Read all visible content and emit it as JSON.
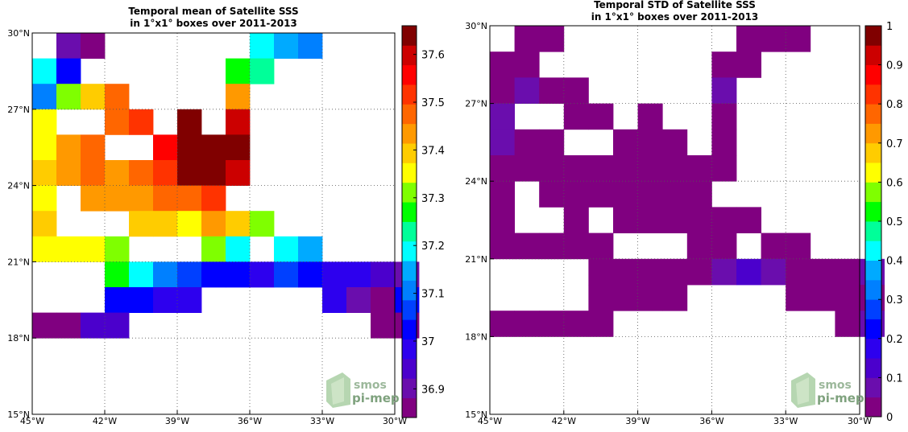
{
  "palette": [
    "#800080",
    "#6a0dad",
    "#4b00cc",
    "#2d00ee",
    "#0000ff",
    "#0040ff",
    "#0080ff",
    "#00aaff",
    "#00ffff",
    "#00ff99",
    "#00ff00",
    "#7fff00",
    "#ffff00",
    "#ffcc00",
    "#ff9900",
    "#ff6600",
    "#ff3300",
    "#ff0000",
    "#cc0000",
    "#800000"
  ],
  "logo": {
    "line1": "smos",
    "line2": "pi-mep"
  },
  "chart_data": [
    {
      "type": "heatmap",
      "title": "Temporal mean of Satellite SSS",
      "subtitle": "in 1°x1° boxes over 2011-2013",
      "lon_range": [
        -45,
        -30
      ],
      "lat_range": [
        15,
        30
      ],
      "x_ticks": [
        "45°W",
        "42°W",
        "39°W",
        "36°W",
        "33°W",
        "30°W"
      ],
      "y_ticks": [
        "15°N",
        "18°N",
        "21°N",
        "24°N",
        "27°N",
        "30°N"
      ],
      "grid": true,
      "colorbar": {
        "min": 36.84,
        "max": 37.66,
        "ticks": [
          "36.9",
          "37",
          "37.1",
          "37.2",
          "37.3",
          "37.4",
          "37.5",
          "37.6"
        ]
      },
      "cells": [
        {
          "lon": -44,
          "lat": 29,
          "v": 36.9
        },
        {
          "lon": -43,
          "lat": 29,
          "v": 36.85
        },
        {
          "lon": -36,
          "lat": 29,
          "v": 37.2
        },
        {
          "lon": -35,
          "lat": 29,
          "v": 37.16
        },
        {
          "lon": -34,
          "lat": 29,
          "v": 37.11
        },
        {
          "lon": -45,
          "lat": 28,
          "v": 37.2
        },
        {
          "lon": -44,
          "lat": 28,
          "v": 37.02
        },
        {
          "lon": -37,
          "lat": 28,
          "v": 37.25
        },
        {
          "lon": -36,
          "lat": 28,
          "v": 37.22
        },
        {
          "lon": -45,
          "lat": 27,
          "v": 37.12
        },
        {
          "lon": -44,
          "lat": 27,
          "v": 37.32
        },
        {
          "lon": -43,
          "lat": 27,
          "v": 37.4
        },
        {
          "lon": -42,
          "lat": 27,
          "v": 37.47
        },
        {
          "lon": -37,
          "lat": 27,
          "v": 37.45
        },
        {
          "lon": -45,
          "lat": 26,
          "v": 37.37
        },
        {
          "lon": -42,
          "lat": 26,
          "v": 37.48
        },
        {
          "lon": -41,
          "lat": 26,
          "v": 37.53
        },
        {
          "lon": -39,
          "lat": 26,
          "v": 37.63
        },
        {
          "lon": -37,
          "lat": 26,
          "v": 37.58
        },
        {
          "lon": -45,
          "lat": 25,
          "v": 37.37
        },
        {
          "lon": -44,
          "lat": 25,
          "v": 37.43
        },
        {
          "lon": -43,
          "lat": 25,
          "v": 37.47
        },
        {
          "lon": -40,
          "lat": 25,
          "v": 37.57
        },
        {
          "lon": -39,
          "lat": 25,
          "v": 37.63
        },
        {
          "lon": -38,
          "lat": 25,
          "v": 37.63
        },
        {
          "lon": -37,
          "lat": 25,
          "v": 37.63
        },
        {
          "lon": -45,
          "lat": 24,
          "v": 37.41
        },
        {
          "lon": -44,
          "lat": 24,
          "v": 37.45
        },
        {
          "lon": -43,
          "lat": 24,
          "v": 37.48
        },
        {
          "lon": -42,
          "lat": 24,
          "v": 37.44
        },
        {
          "lon": -41,
          "lat": 24,
          "v": 37.48
        },
        {
          "lon": -40,
          "lat": 24,
          "v": 37.53
        },
        {
          "lon": -39,
          "lat": 24,
          "v": 37.63
        },
        {
          "lon": -38,
          "lat": 24,
          "v": 37.63
        },
        {
          "lon": -37,
          "lat": 24,
          "v": 37.58
        },
        {
          "lon": -45,
          "lat": 23,
          "v": 37.36
        },
        {
          "lon": -43,
          "lat": 23,
          "v": 37.44
        },
        {
          "lon": -42,
          "lat": 23,
          "v": 37.44
        },
        {
          "lon": -41,
          "lat": 23,
          "v": 37.44
        },
        {
          "lon": -40,
          "lat": 23,
          "v": 37.48
        },
        {
          "lon": -39,
          "lat": 23,
          "v": 37.48
        },
        {
          "lon": -38,
          "lat": 23,
          "v": 37.53
        },
        {
          "lon": -45,
          "lat": 22,
          "v": 37.41
        },
        {
          "lon": -41,
          "lat": 22,
          "v": 37.41
        },
        {
          "lon": -40,
          "lat": 22,
          "v": 37.41
        },
        {
          "lon": -39,
          "lat": 22,
          "v": 37.37
        },
        {
          "lon": -38,
          "lat": 22,
          "v": 37.45
        },
        {
          "lon": -37,
          "lat": 22,
          "v": 37.41
        },
        {
          "lon": -36,
          "lat": 22,
          "v": 37.32
        },
        {
          "lon": -45,
          "lat": 21,
          "v": 37.36
        },
        {
          "lon": -44,
          "lat": 21,
          "v": 37.36
        },
        {
          "lon": -43,
          "lat": 21,
          "v": 37.36
        },
        {
          "lon": -42,
          "lat": 21,
          "v": 37.32
        },
        {
          "lon": -38,
          "lat": 21,
          "v": 37.32
        },
        {
          "lon": -37,
          "lat": 21,
          "v": 37.2
        },
        {
          "lon": -35,
          "lat": 21,
          "v": 37.2
        },
        {
          "lon": -34,
          "lat": 21,
          "v": 37.16
        },
        {
          "lon": -42,
          "lat": 20,
          "v": 37.25
        },
        {
          "lon": -41,
          "lat": 20,
          "v": 37.2
        },
        {
          "lon": -40,
          "lat": 20,
          "v": 37.11
        },
        {
          "lon": -39,
          "lat": 20,
          "v": 37.08
        },
        {
          "lon": -38,
          "lat": 20,
          "v": 37.03
        },
        {
          "lon": -37,
          "lat": 20,
          "v": 37.03
        },
        {
          "lon": -36,
          "lat": 20,
          "v": 36.98
        },
        {
          "lon": -35,
          "lat": 20,
          "v": 37.08
        },
        {
          "lon": -34,
          "lat": 20,
          "v": 37.03
        },
        {
          "lon": -33,
          "lat": 20,
          "v": 36.98
        },
        {
          "lon": -32,
          "lat": 20,
          "v": 36.98
        },
        {
          "lon": -31,
          "lat": 20,
          "v": 36.94
        },
        {
          "lon": -30,
          "lat": 20,
          "v": 36.9
        },
        {
          "lon": -42,
          "lat": 19,
          "v": 37.04
        },
        {
          "lon": -41,
          "lat": 19,
          "v": 37.04
        },
        {
          "lon": -40,
          "lat": 19,
          "v": 36.98
        },
        {
          "lon": -39,
          "lat": 19,
          "v": 36.98
        },
        {
          "lon": -33,
          "lat": 19,
          "v": 36.98
        },
        {
          "lon": -32,
          "lat": 19,
          "v": 36.9
        },
        {
          "lon": -31,
          "lat": 19,
          "v": 36.86
        },
        {
          "lon": -30,
          "lat": 19,
          "v": 37.01
        },
        {
          "lon": -45,
          "lat": 18,
          "v": 36.86
        },
        {
          "lon": -44,
          "lat": 18,
          "v": 36.86
        },
        {
          "lon": -43,
          "lat": 18,
          "v": 36.96
        },
        {
          "lon": -42,
          "lat": 18,
          "v": 36.96
        },
        {
          "lon": -31,
          "lat": 18,
          "v": 36.86
        },
        {
          "lon": -30,
          "lat": 18,
          "v": 36.86
        }
      ]
    },
    {
      "type": "heatmap",
      "title": "Temporal STD of Satellite SSS",
      "subtitle": "in 1°x1° boxes over 2011-2013",
      "lon_range": [
        -45,
        -30
      ],
      "lat_range": [
        15,
        30
      ],
      "x_ticks": [
        "45°W",
        "42°W",
        "39°W",
        "36°W",
        "33°W",
        "30°W"
      ],
      "y_ticks": [
        "15°N",
        "18°N",
        "21°N",
        "24°N",
        "27°N",
        "30°N"
      ],
      "grid": true,
      "colorbar": {
        "min": 0,
        "max": 1,
        "ticks": [
          "0",
          "0.1",
          "0.2",
          "0.3",
          "0.4",
          "0.5",
          "0.6",
          "0.7",
          "0.8",
          "0.9",
          "1"
        ]
      },
      "cells": [
        {
          "lon": -44,
          "lat": 29,
          "v": 0.02
        },
        {
          "lon": -43,
          "lat": 29,
          "v": 0.02
        },
        {
          "lon": -35,
          "lat": 29,
          "v": 0.02
        },
        {
          "lon": -34,
          "lat": 29,
          "v": 0.02
        },
        {
          "lon": -33,
          "lat": 29,
          "v": 0.02
        },
        {
          "lon": -45,
          "lat": 28,
          "v": 0.02
        },
        {
          "lon": -44,
          "lat": 28,
          "v": 0.02
        },
        {
          "lon": -36,
          "lat": 28,
          "v": 0.02
        },
        {
          "lon": -35,
          "lat": 28,
          "v": 0.02
        },
        {
          "lon": -45,
          "lat": 27,
          "v": 0.02
        },
        {
          "lon": -44,
          "lat": 27,
          "v": 0.08
        },
        {
          "lon": -43,
          "lat": 27,
          "v": 0.02
        },
        {
          "lon": -42,
          "lat": 27,
          "v": 0.02
        },
        {
          "lon": -36,
          "lat": 27,
          "v": 0.08
        },
        {
          "lon": -45,
          "lat": 26,
          "v": 0.08
        },
        {
          "lon": -42,
          "lat": 26,
          "v": 0.02
        },
        {
          "lon": -41,
          "lat": 26,
          "v": 0.02
        },
        {
          "lon": -39,
          "lat": 26,
          "v": 0.02
        },
        {
          "lon": -36,
          "lat": 26,
          "v": 0.02
        },
        {
          "lon": -45,
          "lat": 25,
          "v": 0.08
        },
        {
          "lon": -44,
          "lat": 25,
          "v": 0.02
        },
        {
          "lon": -43,
          "lat": 25,
          "v": 0.02
        },
        {
          "lon": -40,
          "lat": 25,
          "v": 0.02
        },
        {
          "lon": -39,
          "lat": 25,
          "v": 0.02
        },
        {
          "lon": -38,
          "lat": 25,
          "v": 0.02
        },
        {
          "lon": -36,
          "lat": 25,
          "v": 0.02
        },
        {
          "lon": -45,
          "lat": 24,
          "v": 0.02
        },
        {
          "lon": -44,
          "lat": 24,
          "v": 0.02
        },
        {
          "lon": -43,
          "lat": 24,
          "v": 0.02
        },
        {
          "lon": -42,
          "lat": 24,
          "v": 0.02
        },
        {
          "lon": -41,
          "lat": 24,
          "v": 0.02
        },
        {
          "lon": -40,
          "lat": 24,
          "v": 0.02
        },
        {
          "lon": -39,
          "lat": 24,
          "v": 0.02
        },
        {
          "lon": -38,
          "lat": 24,
          "v": 0.02
        },
        {
          "lon": -37,
          "lat": 24,
          "v": 0.02
        },
        {
          "lon": -36,
          "lat": 24,
          "v": 0.02
        },
        {
          "lon": -45,
          "lat": 23,
          "v": 0.02
        },
        {
          "lon": -43,
          "lat": 23,
          "v": 0.02
        },
        {
          "lon": -42,
          "lat": 23,
          "v": 0.02
        },
        {
          "lon": -41,
          "lat": 23,
          "v": 0.02
        },
        {
          "lon": -40,
          "lat": 23,
          "v": 0.02
        },
        {
          "lon": -39,
          "lat": 23,
          "v": 0.02
        },
        {
          "lon": -38,
          "lat": 23,
          "v": 0.02
        },
        {
          "lon": -37,
          "lat": 23,
          "v": 0.02
        },
        {
          "lon": -45,
          "lat": 22,
          "v": 0.02
        },
        {
          "lon": -42,
          "lat": 22,
          "v": 0.02
        },
        {
          "lon": -40,
          "lat": 22,
          "v": 0.02
        },
        {
          "lon": -39,
          "lat": 22,
          "v": 0.02
        },
        {
          "lon": -38,
          "lat": 22,
          "v": 0.02
        },
        {
          "lon": -37,
          "lat": 22,
          "v": 0.02
        },
        {
          "lon": -36,
          "lat": 22,
          "v": 0.02
        },
        {
          "lon": -35,
          "lat": 22,
          "v": 0.02
        },
        {
          "lon": -45,
          "lat": 21,
          "v": 0.02
        },
        {
          "lon": -44,
          "lat": 21,
          "v": 0.02
        },
        {
          "lon": -43,
          "lat": 21,
          "v": 0.02
        },
        {
          "lon": -42,
          "lat": 21,
          "v": 0.02
        },
        {
          "lon": -41,
          "lat": 21,
          "v": 0.02
        },
        {
          "lon": -37,
          "lat": 21,
          "v": 0.02
        },
        {
          "lon": -36,
          "lat": 21,
          "v": 0.02
        },
        {
          "lon": -34,
          "lat": 21,
          "v": 0.02
        },
        {
          "lon": -33,
          "lat": 21,
          "v": 0.02
        },
        {
          "lon": -41,
          "lat": 20,
          "v": 0.02
        },
        {
          "lon": -40,
          "lat": 20,
          "v": 0.02
        },
        {
          "lon": -39,
          "lat": 20,
          "v": 0.02
        },
        {
          "lon": -38,
          "lat": 20,
          "v": 0.02
        },
        {
          "lon": -37,
          "lat": 20,
          "v": 0.02
        },
        {
          "lon": -36,
          "lat": 20,
          "v": 0.08
        },
        {
          "lon": -35,
          "lat": 20,
          "v": 0.13
        },
        {
          "lon": -34,
          "lat": 20,
          "v": 0.08
        },
        {
          "lon": -33,
          "lat": 20,
          "v": 0.02
        },
        {
          "lon": -32,
          "lat": 20,
          "v": 0.02
        },
        {
          "lon": -31,
          "lat": 20,
          "v": 0.02
        },
        {
          "lon": -30,
          "lat": 20,
          "v": 0.08
        },
        {
          "lon": -41,
          "lat": 19,
          "v": 0.02
        },
        {
          "lon": -40,
          "lat": 19,
          "v": 0.02
        },
        {
          "lon": -39,
          "lat": 19,
          "v": 0.02
        },
        {
          "lon": -38,
          "lat": 19,
          "v": 0.02
        },
        {
          "lon": -33,
          "lat": 19,
          "v": 0.02
        },
        {
          "lon": -32,
          "lat": 19,
          "v": 0.02
        },
        {
          "lon": -31,
          "lat": 19,
          "v": 0.02
        },
        {
          "lon": -30,
          "lat": 19,
          "v": 0.02
        },
        {
          "lon": -45,
          "lat": 18,
          "v": 0.02
        },
        {
          "lon": -44,
          "lat": 18,
          "v": 0.02
        },
        {
          "lon": -43,
          "lat": 18,
          "v": 0.02
        },
        {
          "lon": -42,
          "lat": 18,
          "v": 0.02
        },
        {
          "lon": -41,
          "lat": 18,
          "v": 0.02
        },
        {
          "lon": -31,
          "lat": 18,
          "v": 0.02
        },
        {
          "lon": -30,
          "lat": 18,
          "v": 0.08
        }
      ]
    }
  ]
}
